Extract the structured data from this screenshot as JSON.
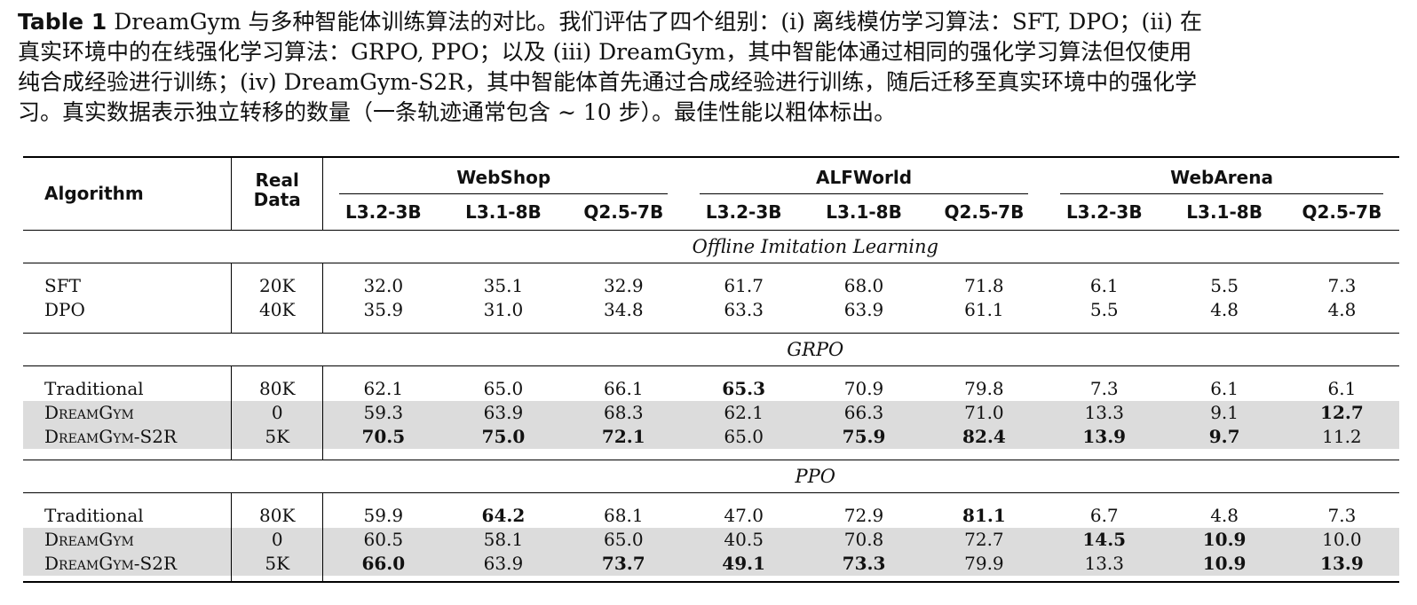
{
  "caption": {
    "label": "Table 1",
    "lines": [
      "DreamGym 与多种智能体训练算法的对比。我们评估了四个组别：(i) 离线模仿学习算法：SFT, DPO；(ii) 在",
      "真实环境中的在线强化学习算法：GRPO, PPO；以及 (iii) DreamGym，其中智能体通过相同的强化学习算法但仅使用",
      "纯合成经验进行训练；(iv) DreamGym-S2R，其中智能体首先通过合成经验进行训练，随后迁移至真实环境中的强化学",
      "习。真实数据表示独立转移的数量（一条轨迹通常包含 ∼ 10 步）。最佳性能以粗体标出。"
    ]
  },
  "table": {
    "col_algorithm": "Algorithm",
    "col_real_data": "Real Data",
    "groups": [
      "WebShop",
      "ALFWorld",
      "WebArena"
    ],
    "models": [
      "L3.2-3B",
      "L3.1-8B",
      "Q2.5-7B",
      "L3.2-3B",
      "L3.1-8B",
      "Q2.5-7B",
      "L3.2-3B",
      "L3.1-8B",
      "Q2.5-7B"
    ],
    "sections": [
      {
        "title": "Offline Imitation Learning",
        "rows": [
          {
            "name": "SFT",
            "real": "20K",
            "values": [
              "32.0",
              "35.1",
              "32.9",
              "61.7",
              "68.0",
              "71.8",
              "6.1",
              "5.5",
              "7.3"
            ]
          },
          {
            "name": "DPO",
            "real": "40K",
            "values": [
              "35.9",
              "31.0",
              "34.8",
              "63.3",
              "63.9",
              "61.1",
              "5.5",
              "4.8",
              "4.8"
            ]
          }
        ]
      },
      {
        "title": "GRPO",
        "rows": [
          {
            "name": "Traditional",
            "real": "80K",
            "values": [
              "62.1",
              "65.0",
              "66.1",
              "65.3",
              "70.9",
              "79.8",
              "7.3",
              "6.1",
              "6.1"
            ]
          },
          {
            "name": "DreamGym",
            "real": "0",
            "values": [
              "59.3",
              "63.9",
              "68.3",
              "62.1",
              "66.3",
              "71.0",
              "13.3",
              "9.1",
              "12.7"
            ]
          },
          {
            "name": "DreamGym-S2R",
            "real": "5K",
            "values": [
              "70.5",
              "75.0",
              "72.1",
              "65.0",
              "75.9",
              "82.4",
              "13.9",
              "9.7",
              "11.2"
            ]
          }
        ]
      },
      {
        "title": "PPO",
        "rows": [
          {
            "name": "Traditional",
            "real": "80K",
            "values": [
              "59.9",
              "64.2",
              "68.1",
              "47.0",
              "72.9",
              "81.1",
              "6.7",
              "4.8",
              "7.3"
            ]
          },
          {
            "name": "DreamGym",
            "real": "0",
            "values": [
              "60.5",
              "58.1",
              "65.0",
              "40.5",
              "70.8",
              "72.7",
              "14.5",
              "10.9",
              "10.0"
            ]
          },
          {
            "name": "DreamGym-S2R",
            "real": "5K",
            "values": [
              "66.0",
              "63.9",
              "73.7",
              "49.1",
              "73.3",
              "79.9",
              "13.3",
              "10.9",
              "13.9"
            ]
          }
        ]
      }
    ]
  }
}
